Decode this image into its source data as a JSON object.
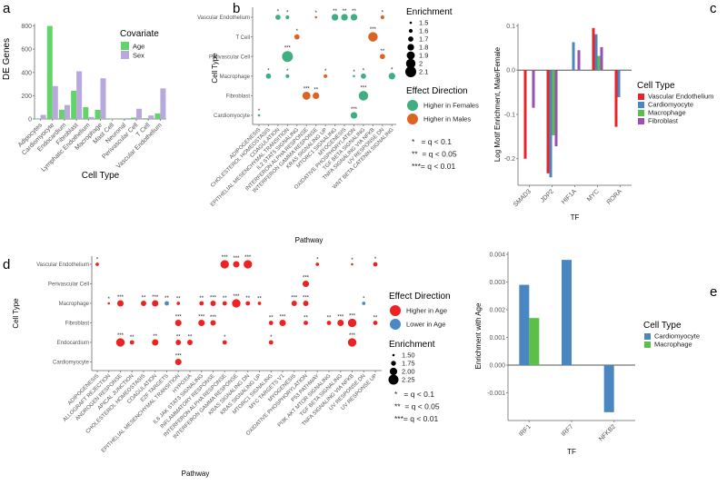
{
  "panels": {
    "a": "a",
    "b": "b",
    "c": "c",
    "d": "d",
    "e": "e"
  },
  "colors": {
    "age": "#62d46a",
    "sex": "#b9a8dc",
    "females": "#3fae80",
    "males": "#e06220",
    "vascular_endothelium": "#e8232a",
    "cardiomyocyte": "#4a86c0",
    "macrophage": "#5cbf4a",
    "fibroblast": "#9b4fb6",
    "higher_age": "#ef2222",
    "lower_age": "#4a88c8"
  },
  "chart_data": [
    {
      "id": "a",
      "type": "bar",
      "title": "",
      "xlabel": "Cell Type",
      "ylabel": "DE Genes",
      "ylim": [
        0,
        820
      ],
      "yticks": [
        0,
        200,
        400,
        600,
        800
      ],
      "categories": [
        "Adipocytes",
        "Cardiomyocyte",
        "Endocardium",
        "Fibroblast",
        "Lymphatic Endothelium",
        "Macrophage",
        "Mast Cell",
        "Neuronal",
        "Perivascular Cell",
        "T Cell",
        "Vascular Endothelium"
      ],
      "legend_title": "Covariate",
      "series": [
        {
          "name": "Age",
          "values": [
            3,
            800,
            80,
            243,
            102,
            78,
            0,
            5,
            12,
            7,
            48
          ]
        },
        {
          "name": "Sex",
          "values": [
            35,
            283,
            120,
            410,
            17,
            350,
            0,
            7,
            88,
            30,
            263
          ]
        }
      ]
    },
    {
      "id": "b",
      "type": "scatter",
      "xlabel": "Pathway",
      "ylabel": "Cell Type",
      "rows": [
        "Vascular Endothelium",
        "T Cell",
        "Perivascular Cell",
        "Macrophage",
        "Fibroblast",
        "Cardiomyocyte"
      ],
      "columns": [
        "ADIPOGENESIS",
        "CHOLESTEROL HOMEOSTASIS",
        "COAGULATION",
        "EPITHELIAL MESENCHYMAL TRANSITION",
        "IL2 STAT5 SIGNALING",
        "INTERFERON ALPHA RESPONSE",
        "INTERFERON GAMMA RESPONSE",
        "KRAS SIGNALING UP",
        "MTORC1 SIGNALING",
        "MYOGENESIS",
        "OXIDATIVE PHOSPHORYLATION",
        "TGF BETA SIGNALING",
        "TNFA SIGNALING VIA NFKB",
        "UV RESPONSE DN",
        "WNT BETA CATENIN SIGNALING"
      ],
      "size_legend_title": "Enrichment",
      "size_legend": [
        1.5,
        1.6,
        1.7,
        1.8,
        1.9,
        2.0,
        2.1
      ],
      "direction_legend_title": "Effect Direction",
      "directions": {
        "F": "Higher in Females",
        "M": "Higher in Males"
      },
      "significance_legend": [
        "*   = q < 0.1",
        "**  = q < 0.05",
        "***= q < 0.01"
      ],
      "points": [
        [
          0,
          2,
          "F",
          1.7,
          "*"
        ],
        [
          0,
          3,
          "F",
          1.6,
          "*"
        ],
        [
          0,
          6,
          "M",
          1.5,
          "*"
        ],
        [
          0,
          8,
          "F",
          1.8,
          "**"
        ],
        [
          0,
          9,
          "F",
          1.8,
          "**"
        ],
        [
          0,
          10,
          "F",
          1.8,
          "**"
        ],
        [
          0,
          13,
          "M",
          1.6,
          "*"
        ],
        [
          1,
          4,
          "M",
          1.7,
          "*"
        ],
        [
          1,
          12,
          "M",
          2.0,
          "***"
        ],
        [
          2,
          3,
          "F",
          2.1,
          "***"
        ],
        [
          2,
          13,
          "M",
          1.7,
          "**"
        ],
        [
          3,
          1,
          "F",
          1.7,
          "*"
        ],
        [
          3,
          3,
          "F",
          1.6,
          "*"
        ],
        [
          3,
          7,
          "M",
          1.6,
          "*"
        ],
        [
          3,
          10,
          "F",
          1.5,
          "*"
        ],
        [
          3,
          11,
          "F",
          1.7,
          "*"
        ],
        [
          3,
          14,
          "F",
          1.8,
          "*"
        ],
        [
          4,
          5,
          "M",
          1.9,
          "***"
        ],
        [
          4,
          6,
          "M",
          1.8,
          "**"
        ],
        [
          4,
          11,
          "F",
          2.0,
          "***"
        ],
        [
          5,
          0,
          "F",
          1.5,
          "*"
        ],
        [
          5,
          10,
          "F",
          1.8,
          "***"
        ]
      ]
    },
    {
      "id": "c",
      "type": "bar",
      "xlabel": "TF",
      "ylabel": "Log Motif Enrichment, Male/Female",
      "ylim": [
        -0.26,
        0.105
      ],
      "yticks": [
        -0.2,
        -0.1,
        0.0,
        0.1
      ],
      "ytick_labels": [
        "-0.2",
        "-0.1",
        "0.0",
        "0.1"
      ],
      "categories": [
        "SMAD3",
        "JDP2",
        "HIF1A",
        "MYC",
        "RORA"
      ],
      "legend_title": "Cell Type",
      "series": [
        {
          "name": "Vascular Endothelium",
          "values": [
            -0.2,
            -0.233,
            null,
            0.095,
            -0.128
          ]
        },
        {
          "name": "Cardiomyocyte",
          "values": [
            null,
            -0.242,
            0.063,
            0.081,
            -0.061
          ]
        },
        {
          "name": "Macrophage",
          "values": [
            null,
            -0.147,
            null,
            0.032,
            null
          ]
        },
        {
          "name": "Fibroblast",
          "values": [
            -0.085,
            -0.172,
            0.045,
            0.052,
            null
          ]
        }
      ]
    },
    {
      "id": "d",
      "type": "scatter",
      "xlabel": "Pathway",
      "ylabel": "Cell Type",
      "rows": [
        "Vascular Endothelium",
        "Perivascular Cell",
        "Macrophage",
        "Fibroblast",
        "Endocardium",
        "Cardiomyocyte"
      ],
      "columns": [
        "ADIPOGENESIS",
        "ALLOGRAFT REJECTION",
        "ANDROGEN RESPONSE",
        "APICAL JUNCTION",
        "CHOLESTEROL HOMEOSTASIS",
        "COAGULATION",
        "E2F TARGETS",
        "EPITHELIAL MESENCHYMAL TRANSITION",
        "HYPOXIA",
        "IL6 JAK STAT3 SIGNALING",
        "INFLAMMATORY RESPONSE",
        "INTERFERON ALPHA RESPONSE",
        "INTERFERON GAMMA RESPONSE",
        "KRAS SIGNALING DN",
        "KRAS SIGNALING UP",
        "MTORC1 SIGNALING",
        "MYC TARGETS V1",
        "MYOGENESIS",
        "OXIDATIVE PHOSPHORYLATION",
        "P53 PATHWAY",
        "PI3K AKT MTOR SIGNALING",
        "TGF BETA SIGNALING",
        "TNFA SIGNALING VIA NFKB",
        "UV RESPONSE DN",
        "UV RESPONSE UP"
      ],
      "size_legend_title": "Enrichment",
      "size_legend": [
        1.5,
        1.75,
        2.0,
        2.25
      ],
      "size_legend_labels": [
        "1.50",
        "1.75",
        "2.00",
        "2.25"
      ],
      "direction_legend_title": "Effect Direction",
      "directions": {
        "H": "Higher in Age",
        "L": "Lower in Age"
      },
      "significance_legend": [
        "*   = q < 0.1",
        "**  = q < 0.05",
        "***= q < 0.01"
      ],
      "points": [
        [
          0,
          0,
          "H",
          1.6,
          "*"
        ],
        [
          0,
          11,
          "H",
          2.1,
          "***"
        ],
        [
          0,
          12,
          "H",
          1.9,
          "***"
        ],
        [
          0,
          13,
          "H",
          2.1,
          "***"
        ],
        [
          0,
          19,
          "H",
          1.6,
          "*"
        ],
        [
          0,
          22,
          "H",
          1.5,
          "*"
        ],
        [
          0,
          24,
          "H",
          1.7,
          "*"
        ],
        [
          1,
          18,
          "H",
          1.9,
          "***"
        ],
        [
          2,
          1,
          "H",
          1.5,
          "*"
        ],
        [
          2,
          2,
          "H",
          1.9,
          "***"
        ],
        [
          2,
          4,
          "H",
          1.8,
          "**"
        ],
        [
          2,
          5,
          "H",
          1.9,
          "***"
        ],
        [
          2,
          6,
          "L",
          1.7,
          "**"
        ],
        [
          2,
          7,
          "H",
          1.6,
          "**"
        ],
        [
          2,
          9,
          "H",
          1.7,
          "**"
        ],
        [
          2,
          10,
          "H",
          1.8,
          "***"
        ],
        [
          2,
          11,
          "H",
          1.7,
          "**"
        ],
        [
          2,
          12,
          "H",
          2.1,
          "***"
        ],
        [
          2,
          13,
          "H",
          1.7,
          "**"
        ],
        [
          2,
          14,
          "H",
          1.6,
          "**"
        ],
        [
          2,
          17,
          "H",
          1.8,
          "***"
        ],
        [
          2,
          18,
          "H",
          1.8,
          "***"
        ],
        [
          2,
          23,
          "L",
          1.6,
          "*"
        ],
        [
          3,
          7,
          "H",
          1.9,
          "***"
        ],
        [
          3,
          9,
          "H",
          1.9,
          "***"
        ],
        [
          3,
          10,
          "H",
          1.8,
          "***"
        ],
        [
          3,
          15,
          "H",
          1.7,
          "**"
        ],
        [
          3,
          16,
          "H",
          1.9,
          "***"
        ],
        [
          3,
          18,
          "H",
          1.7,
          "**"
        ],
        [
          3,
          20,
          "H",
          1.7,
          "**"
        ],
        [
          3,
          21,
          "H",
          1.9,
          "***"
        ],
        [
          3,
          22,
          "H",
          2.1,
          "***"
        ],
        [
          3,
          24,
          "H",
          1.7,
          "**"
        ],
        [
          4,
          2,
          "H",
          2.1,
          "***"
        ],
        [
          4,
          3,
          "H",
          1.7,
          "**"
        ],
        [
          4,
          5,
          "H",
          1.9,
          "**"
        ],
        [
          4,
          7,
          "H",
          1.8,
          "**"
        ],
        [
          4,
          8,
          "H",
          1.8,
          "**"
        ],
        [
          4,
          11,
          "H",
          1.7,
          "*"
        ],
        [
          4,
          15,
          "H",
          1.7,
          "*"
        ],
        [
          4,
          22,
          "H",
          2.1,
          "***"
        ],
        [
          5,
          7,
          "H",
          1.9,
          "***"
        ]
      ]
    },
    {
      "id": "e",
      "type": "bar",
      "xlabel": "TF",
      "ylabel": "Enrichment with Age",
      "ylim": [
        -0.002,
        0.0041
      ],
      "yticks": [
        -0.001,
        0.0,
        0.001,
        0.002,
        0.003,
        0.004
      ],
      "ytick_labels": [
        "-0.001",
        "0.000",
        "0.001",
        "0.002",
        "0.003",
        "0.004"
      ],
      "categories": [
        "IRF1",
        "IRF7",
        "NFKB2"
      ],
      "legend_title": "Cell Type",
      "series": [
        {
          "name": "Cardiomyocyte",
          "values": [
            0.0029,
            0.0038,
            -0.0017
          ]
        },
        {
          "name": "Macrophage",
          "values": [
            0.0017,
            null,
            null
          ]
        }
      ]
    }
  ]
}
